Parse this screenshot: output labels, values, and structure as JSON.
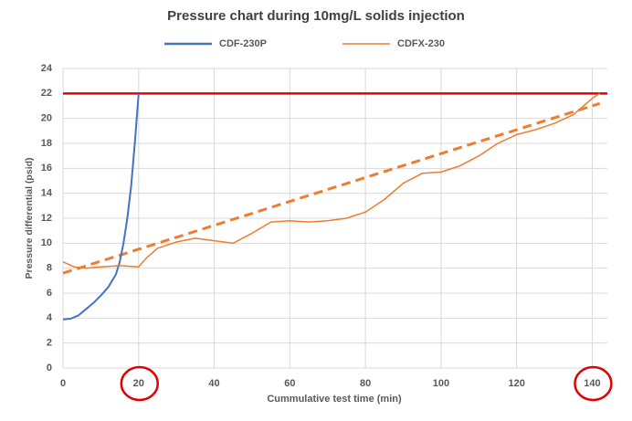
{
  "chart_data": {
    "type": "line",
    "title": "Pressure chart during 10mg/L solids injection",
    "x_label": "Cummulative test time (min)",
    "y_label": "Pressure differential (psid)",
    "xlim": [
      0,
      144
    ],
    "xticks": [
      0,
      20,
      40,
      60,
      80,
      100,
      120,
      140
    ],
    "ylim": [
      0,
      24
    ],
    "yticks": [
      0,
      2,
      4,
      6,
      8,
      10,
      12,
      14,
      16,
      18,
      20,
      22,
      24
    ],
    "grid": true,
    "series": [
      {
        "name": "CDF-230P",
        "color": "#4472c4",
        "x": [
          0,
          2,
          4,
          6,
          8,
          10,
          12,
          14,
          15,
          16,
          17,
          18,
          19,
          20
        ],
        "values": [
          3.9,
          3.95,
          4.2,
          4.7,
          5.2,
          5.8,
          6.5,
          7.5,
          8.5,
          10,
          12,
          14.5,
          18,
          22
        ]
      },
      {
        "name": "CDFX-230",
        "color": "#ed7d31",
        "x": [
          0,
          3,
          6,
          10,
          15,
          20,
          22,
          25,
          30,
          35,
          40,
          45,
          50,
          55,
          60,
          65,
          70,
          75,
          80,
          85,
          90,
          95,
          100,
          105,
          110,
          115,
          120,
          125,
          130,
          135,
          140,
          142
        ],
        "values": [
          8.5,
          8.1,
          8,
          8.1,
          8.2,
          8.1,
          8.8,
          9.6,
          10.1,
          10.4,
          10.2,
          10.0,
          10.8,
          11.7,
          11.8,
          11.7,
          11.8,
          12.0,
          12.5,
          13.5,
          14.8,
          15.6,
          15.7,
          16.2,
          17.0,
          18.0,
          18.7,
          19.1,
          19.6,
          20.3,
          21.6,
          22
        ]
      }
    ],
    "trendline": {
      "color": "#ed7d31",
      "x": [
        0,
        142
      ],
      "values": [
        7.6,
        21.2
      ]
    },
    "threshold": {
      "value": 22,
      "color": "#e00000"
    },
    "circled_xticks": [
      20,
      140
    ]
  }
}
